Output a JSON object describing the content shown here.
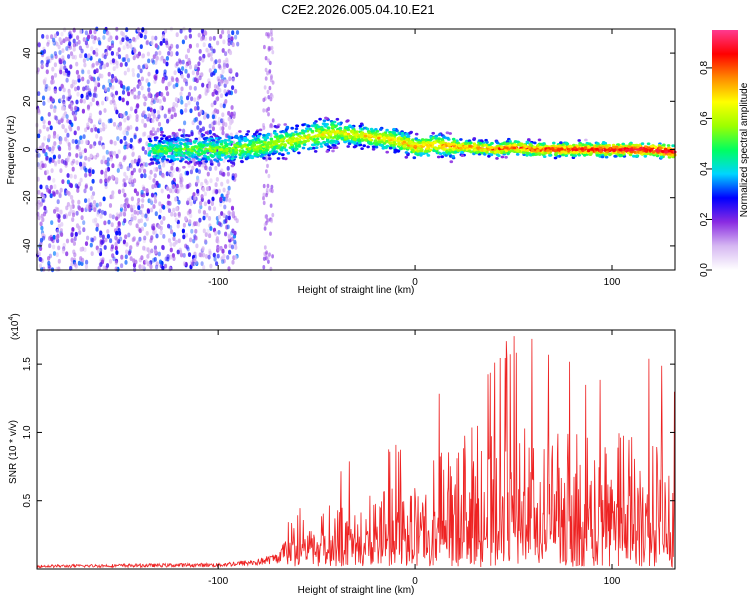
{
  "chart_data": [
    {
      "type": "heatmap",
      "title": "C2E2.2026.005.04.10.E21",
      "xlabel": "Height of straight line (km)",
      "ylabel": "Frequency (Hz)",
      "xlim": [
        -192,
        132
      ],
      "ylim": [
        -50,
        50
      ],
      "x_ticks": [
        -100,
        0,
        100
      ],
      "x_tick_labels": [
        "-100",
        "0",
        "100"
      ],
      "y_ticks": [
        -40,
        -20,
        0,
        20,
        40
      ],
      "y_tick_labels": [
        "-40",
        "-20",
        "0",
        "20",
        "40"
      ],
      "colorbar": {
        "label": "Normalized spectral amplitude",
        "range": [
          0,
          0.95
        ],
        "ticks": [
          0,
          0.2,
          0.4,
          0.6,
          0.8
        ],
        "tick_labels": [
          "0.0",
          "0.2",
          "0.4",
          "0.6",
          "0.8"
        ],
        "colormap": [
          "#ffffff",
          "#d6b8f2",
          "#8a2be2",
          "#0000ff",
          "#00d5ff",
          "#00ff60",
          "#9dff00",
          "#ffff00",
          "#ff8a00",
          "#ff0000",
          "#ff3a90"
        ]
      },
      "ridge": {
        "x": [
          -134,
          -110,
          -95,
          -80,
          -70,
          -60,
          -50,
          -40,
          -30,
          -20,
          -10,
          0,
          10,
          20,
          30,
          40,
          50,
          60,
          70,
          80,
          90,
          100,
          110,
          120,
          130
        ],
        "frequency_hz": [
          0,
          0,
          0,
          1,
          3,
          4,
          6,
          7,
          6,
          5,
          4,
          1,
          2,
          1,
          1,
          0,
          1,
          0,
          0,
          0,
          0,
          0,
          0,
          0,
          -1
        ]
      }
    },
    {
      "type": "line",
      "xlabel": "Height of straight line (km)",
      "ylabel": "SNR (10 * v/v)",
      "y_multiplier_label": "(x10",
      "y_multiplier_exp": "4",
      "xlim": [
        -192,
        132
      ],
      "ylim": [
        0,
        1.75
      ],
      "x_ticks": [
        -100,
        0,
        100
      ],
      "x_tick_labels": [
        "-100",
        "0",
        "100"
      ],
      "y_ticks": [
        0.5,
        1.0,
        1.5
      ],
      "y_tick_labels": [
        "0.5",
        "1.0",
        "1.5"
      ],
      "series": [
        {
          "name": "SNR",
          "color": "#ee2222",
          "envelope_x": [
            -192,
            -100,
            -80,
            -70,
            -62,
            -55,
            -40,
            -20,
            0,
            20,
            40,
            55,
            70,
            90,
            110,
            132
          ],
          "envelope_mean": [
            0.02,
            0.03,
            0.05,
            0.08,
            0.2,
            0.22,
            0.28,
            0.32,
            0.38,
            0.5,
            0.55,
            0.6,
            0.58,
            0.55,
            0.5,
            0.45
          ],
          "envelope_peak": [
            0.05,
            0.06,
            0.12,
            0.18,
            0.7,
            0.6,
            0.75,
            0.82,
            1.05,
            1.55,
            1.6,
            1.75,
            1.55,
            1.45,
            1.6,
            1.45
          ]
        }
      ]
    }
  ]
}
